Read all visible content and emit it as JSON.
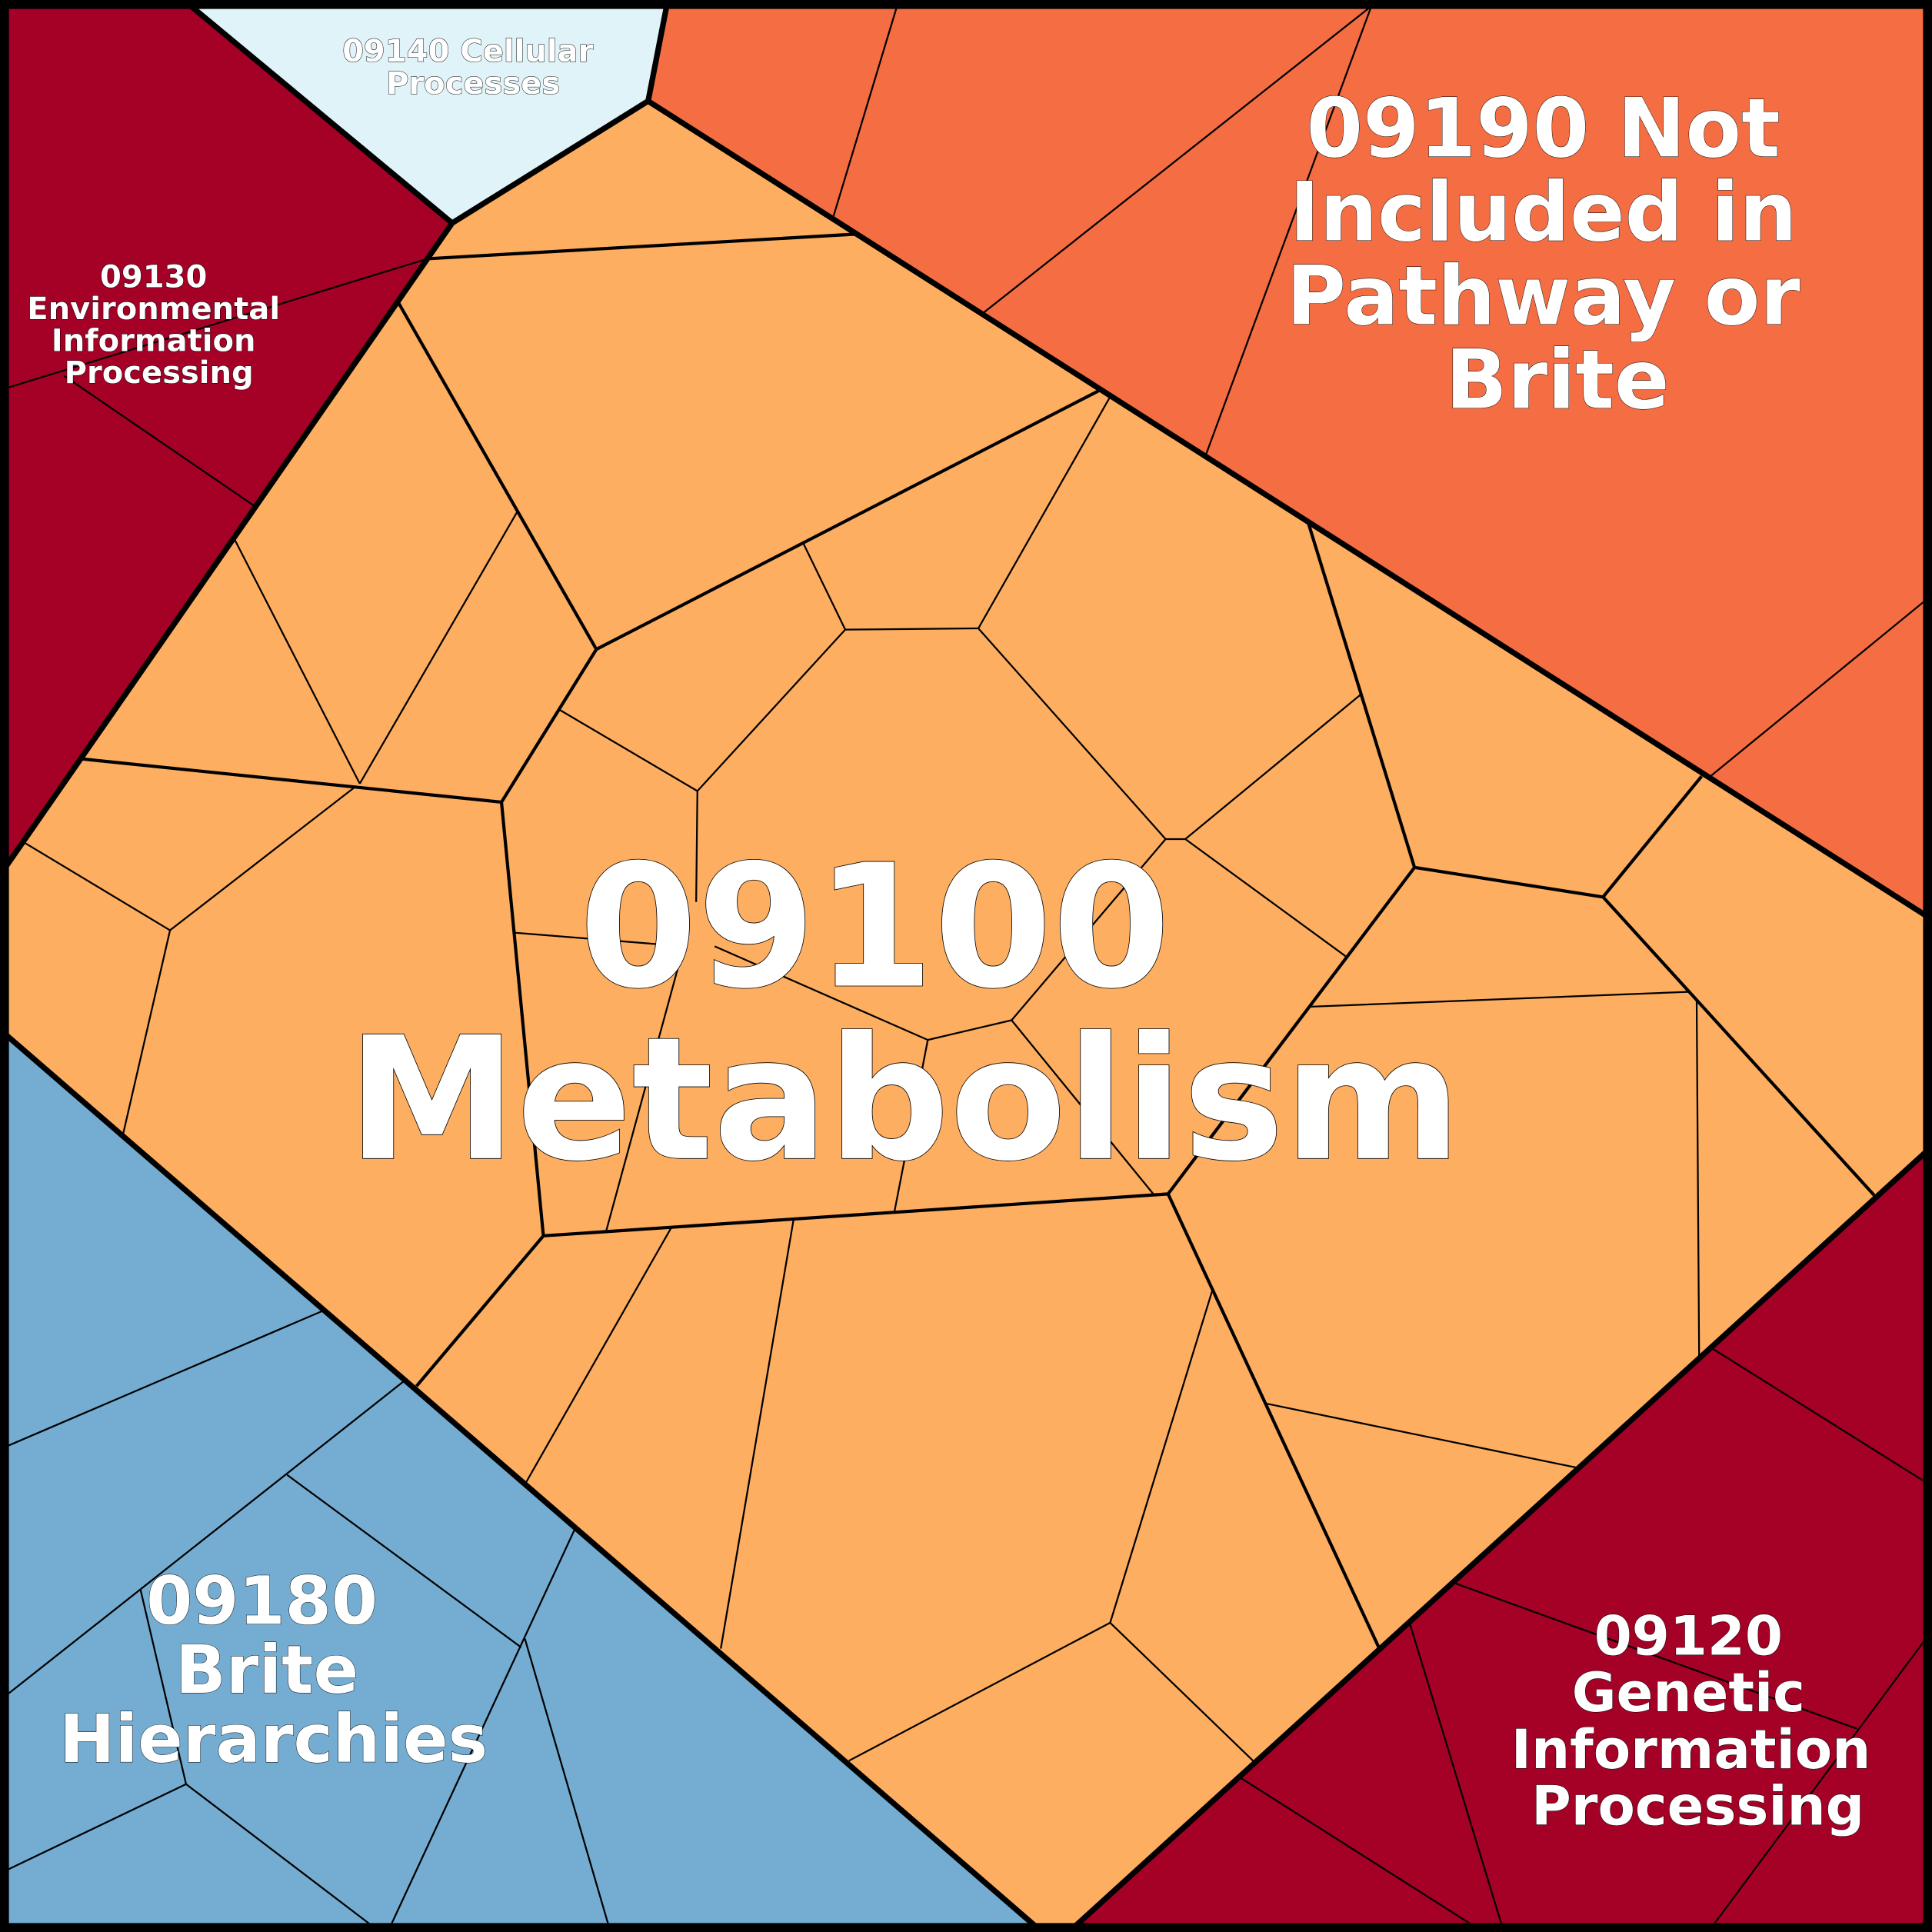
{
  "diagram": {
    "type": "voronoi-treemap",
    "regions": [
      {
        "id": "metabolism",
        "lines": [
          "09100",
          "Metabolism"
        ],
        "color": "#fdae61"
      },
      {
        "id": "not-included",
        "lines": [
          "09190 Not",
          "Included in",
          "Pathway or",
          "Brite"
        ],
        "color": "#f46d43"
      },
      {
        "id": "environmental",
        "lines": [
          "09130",
          "Environmental",
          "Information",
          "Processing"
        ],
        "color": "#a50026"
      },
      {
        "id": "cellular",
        "lines": [
          "09140 Cellular",
          "Processes"
        ],
        "color": "#e0f3f8"
      },
      {
        "id": "brite",
        "lines": [
          "09180",
          "Brite",
          "Hierarchies"
        ],
        "color": "#74add1"
      },
      {
        "id": "genetic",
        "lines": [
          "09120",
          "Genetic",
          "Information",
          "Processing"
        ],
        "color": "#a50026"
      }
    ]
  }
}
